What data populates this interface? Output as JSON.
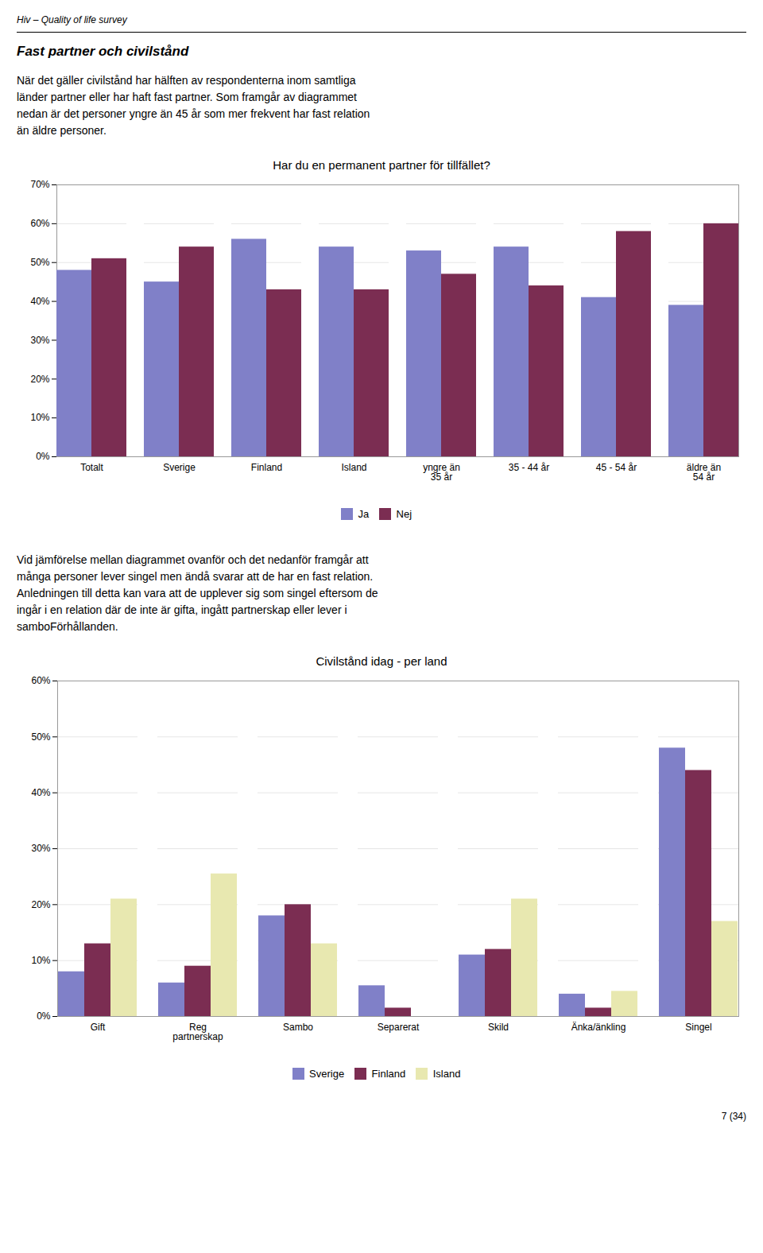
{
  "header_text": "Hiv – Quality of life survey",
  "section_title": "Fast partner och civilstånd",
  "intro_lines": [
    "När det gäller civilstånd har hälften av respondenterna inom samtliga",
    "länder partner eller har haft fast partner. Som framgår av diagrammet",
    "nedan är det personer yngre än 45 år som mer frekvent har fast relation",
    "än äldre personer."
  ],
  "mid_lines": [
    "Vid jämförelse mellan diagrammet ovanför och det nedanför framgår att",
    "många personer lever singel men ändå svarar att de har en fast relation.",
    "Anledningen till detta kan vara att de upplever sig som singel eftersom de",
    "ingår i en relation där de inte är gifta, ingått partnerskap eller lever i",
    "samboFörhållanden."
  ],
  "footer_text": "7 (34)",
  "chart_data": [
    {
      "type": "bar",
      "title": "Har du en permanent partner för tillfället?",
      "categories": [
        "Totalt",
        "Sverige",
        "Finland",
        "Island",
        "yngre än\n35 år",
        "35 - 44 år",
        "45 - 54 år",
        "äldre än\n54 år"
      ],
      "series": [
        {
          "name": "Ja",
          "color": "#8080c8",
          "values": [
            0.48,
            0.45,
            0.56,
            0.54,
            0.53,
            0.54,
            0.41,
            0.39
          ]
        },
        {
          "name": "Nej",
          "color": "#7b2d52",
          "values": [
            0.51,
            0.54,
            0.43,
            0.43,
            0.47,
            0.44,
            0.58,
            0.6
          ]
        }
      ],
      "ylim": [
        0,
        0.7
      ],
      "yticks": [
        {
          "value": 0,
          "label": "0%"
        },
        {
          "value": 0.1,
          "label": "10%"
        },
        {
          "value": 0.2,
          "label": "20%"
        },
        {
          "value": 0.3,
          "label": "30%"
        },
        {
          "value": 0.4,
          "label": "40%"
        },
        {
          "value": 0.5,
          "label": "50%"
        },
        {
          "value": 0.6,
          "label": "60%"
        },
        {
          "value": 0.7,
          "label": "70%"
        }
      ],
      "grid": true,
      "legend": "bottom"
    },
    {
      "type": "bar",
      "title": "Civilstånd idag - per land",
      "categories": [
        "Gift",
        "Reg\npartnerskap",
        "Sambo",
        "Separerat",
        "Skild",
        "Änka/änkling",
        "Singel"
      ],
      "series": [
        {
          "name": "Sverige",
          "color": "#8080c8",
          "values": [
            0.08,
            0.06,
            0.18,
            0.055,
            0.11,
            0.04,
            0.48
          ]
        },
        {
          "name": "Finland",
          "color": "#7b2d52",
          "values": [
            0.13,
            0.09,
            0.2,
            0.015,
            0.12,
            0.015,
            0.44
          ]
        },
        {
          "name": "Island",
          "color": "#e8e8b0",
          "values": [
            0.21,
            0.255,
            0.13,
            0,
            0.21,
            0.045,
            0.17
          ]
        }
      ],
      "ylim": [
        0,
        0.6
      ],
      "yticks": [
        {
          "value": 0,
          "label": "0%"
        },
        {
          "value": 0.1,
          "label": "10%"
        },
        {
          "value": 0.2,
          "label": "20%"
        },
        {
          "value": 0.3,
          "label": "30%"
        },
        {
          "value": 0.4,
          "label": "40%"
        },
        {
          "value": 0.5,
          "label": "50%"
        },
        {
          "value": 0.6,
          "label": "60%"
        }
      ],
      "grid": true,
      "legend": "bottom"
    }
  ]
}
